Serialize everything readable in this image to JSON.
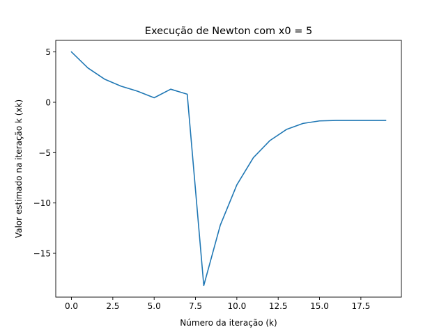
{
  "chart_data": {
    "type": "line",
    "title": "Execução de Newton com x0 = 5",
    "xlabel": "Número da iteração (k)",
    "ylabel": "Valor estimado na iteração k (xk)",
    "xlim": [
      -0.95,
      19.95
    ],
    "ylim": [
      -19.35,
      6.15
    ],
    "grid": false,
    "line_color": "#1f77b4",
    "x_ticks": [
      {
        "value": 0.0,
        "label": "0.0"
      },
      {
        "value": 2.5,
        "label": "2.5"
      },
      {
        "value": 5.0,
        "label": "5.0"
      },
      {
        "value": 7.5,
        "label": "7.5"
      },
      {
        "value": 10.0,
        "label": "10.0"
      },
      {
        "value": 12.5,
        "label": "12.5"
      },
      {
        "value": 15.0,
        "label": "15.0"
      },
      {
        "value": 17.5,
        "label": "17.5"
      }
    ],
    "y_ticks": [
      {
        "value": 5,
        "label": "5"
      },
      {
        "value": 0,
        "label": "0"
      },
      {
        "value": -5,
        "label": "−5"
      },
      {
        "value": -10,
        "label": "−10"
      },
      {
        "value": -15,
        "label": "−15"
      }
    ],
    "series": [
      {
        "x": [
          0,
          1,
          2,
          3,
          4,
          5,
          6,
          7,
          8,
          9,
          10,
          11,
          12,
          13,
          14,
          15,
          16,
          17,
          18,
          19
        ],
        "y": [
          5.0,
          3.4,
          2.3,
          1.6,
          1.1,
          0.45,
          1.3,
          0.8,
          -18.2,
          -12.2,
          -8.2,
          -5.5,
          -3.8,
          -2.7,
          -2.1,
          -1.85,
          -1.8,
          -1.8,
          -1.8,
          -1.8
        ]
      }
    ]
  }
}
